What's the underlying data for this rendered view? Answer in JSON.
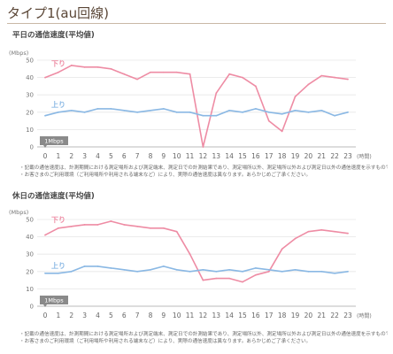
{
  "page": {
    "title": "タイプ1(au回線)"
  },
  "legend": {
    "down_label": "下り",
    "up_label": "上り"
  },
  "chart_data": [
    {
      "type": "line",
      "title": "平日の通信速度(平均値)",
      "ylabel": "(Mbps)",
      "xlabel": "(時間)",
      "ylim": [
        0,
        50
      ],
      "yticks": [
        0,
        10,
        20,
        30,
        40,
        50
      ],
      "x": [
        0,
        1,
        2,
        3,
        4,
        5,
        6,
        7,
        8,
        9,
        10,
        11,
        12,
        13,
        14,
        15,
        16,
        17,
        18,
        19,
        20,
        21,
        22,
        23
      ],
      "series": [
        {
          "name": "下り",
          "color": "#ee8ca4",
          "values": [
            40,
            43,
            47,
            46,
            46,
            45,
            42,
            39,
            43,
            43,
            43,
            42,
            0,
            31,
            42,
            40,
            35,
            15,
            9,
            29,
            36,
            41,
            40,
            39
          ]
        },
        {
          "name": "上り",
          "color": "#8ab8e4",
          "values": [
            18,
            20,
            21,
            20,
            22,
            22,
            21,
            20,
            21,
            22,
            20,
            20,
            18,
            18,
            21,
            20,
            22,
            20,
            19,
            21,
            20,
            21,
            18,
            20
          ]
        }
      ],
      "annotations": [
        {
          "text": "1Mbps",
          "value": 1
        }
      ]
    },
    {
      "type": "line",
      "title": "休日の通信速度(平均値)",
      "ylabel": "(Mbps)",
      "xlabel": "(時間)",
      "ylim": [
        0,
        50
      ],
      "yticks": [
        0,
        10,
        20,
        30,
        40,
        50
      ],
      "x": [
        0,
        1,
        2,
        3,
        4,
        5,
        6,
        7,
        8,
        9,
        10,
        11,
        12,
        13,
        14,
        15,
        16,
        17,
        18,
        19,
        20,
        21,
        22,
        23
      ],
      "series": [
        {
          "name": "下り",
          "color": "#ee8ca4",
          "values": [
            41,
            45,
            46,
            47,
            47,
            49,
            47,
            46,
            45,
            45,
            43,
            30,
            15,
            16,
            16,
            14,
            18,
            20,
            33,
            39,
            43,
            44,
            43,
            42
          ]
        },
        {
          "name": "上り",
          "color": "#8ab8e4",
          "values": [
            19,
            19,
            20,
            23,
            23,
            22,
            21,
            20,
            21,
            23,
            21,
            20,
            21,
            20,
            21,
            20,
            22,
            21,
            20,
            21,
            20,
            20,
            19,
            20
          ]
        }
      ],
      "annotations": [
        {
          "text": "1Mbps",
          "value": 1
        }
      ]
    }
  ],
  "notes": {
    "weekday": [
      "・記載の通信速度は、計測期間における測定場所および測定端末、測定日での計測結果であり、測定場所以外、測定場所以外および測定日以外の通信速度を示すものではありません。",
      "・お客さまのご利用環境（ご利用場所や利用される端末など）により、実際の通信速度は異なります。あらかじめご了承ください。"
    ],
    "holiday": [
      "・記載の通信速度は、計測期間における測定場所および測定端末、測定日での計測結果であり、測定場所以外、測定場所以外および測定日以外の通信速度を示すものではありません。",
      "・お客さまのご利用環境（ご利用場所や利用される端末など）により、実際の通信速度は異なります。あらかじめご了承ください。"
    ]
  }
}
